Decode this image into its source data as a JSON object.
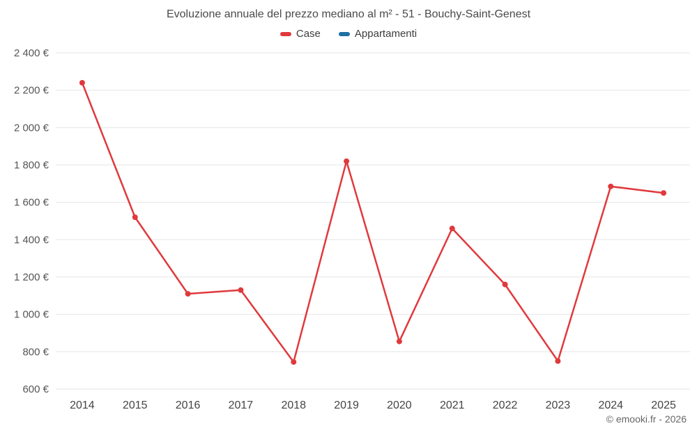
{
  "chart": {
    "title": "Evoluzione annuale del prezzo mediano al m² - 51 - Bouchy-Saint-Genest",
    "footer": "© emooki.fr - 2026"
  },
  "chart_data": {
    "type": "line",
    "title": "Evoluzione annuale del prezzo mediano al m² - 51 - Bouchy-Saint-Genest",
    "categories": [
      "2014",
      "2015",
      "2016",
      "2017",
      "2018",
      "2019",
      "2020",
      "2021",
      "2022",
      "2023",
      "2024",
      "2025"
    ],
    "series": [
      {
        "name": "Case",
        "color": "#e0393c",
        "marker": "circle",
        "values": [
          2240,
          1520,
          1110,
          1130,
          745,
          1820,
          855,
          1460,
          1160,
          750,
          1685,
          1650
        ]
      },
      {
        "name": "Appartamenti",
        "color": "#1d6fa5",
        "marker": "circle",
        "values": []
      }
    ],
    "xlabel": "",
    "ylabel": "",
    "ylim": [
      600,
      2400
    ],
    "yticks": [
      600,
      800,
      1000,
      1200,
      1400,
      1600,
      1800,
      2000,
      2200,
      2400
    ],
    "ytick_suffix": " €",
    "grid": "horizontal",
    "gridline_color": "#e6e6e6",
    "axis_label_color": "#555555",
    "legend_position": "top"
  }
}
